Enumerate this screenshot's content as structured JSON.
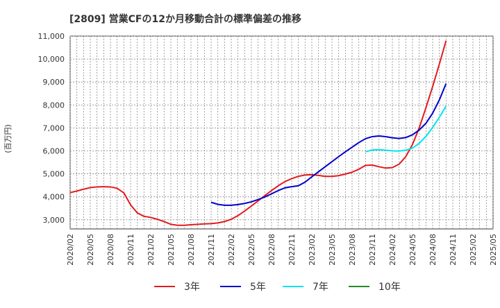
{
  "chart_data": {
    "type": "line",
    "title": "[2809]  営業CFの12か月移動合計の標準偏差の推移",
    "ylabel": "(百万円)",
    "xlabel": "",
    "ylim": [
      2600,
      11000
    ],
    "yticks": [
      3000,
      4000,
      5000,
      6000,
      7000,
      8000,
      9000,
      10000,
      11000
    ],
    "ytick_labels": [
      "3,000",
      "4,000",
      "5,000",
      "6,000",
      "7,000",
      "8,000",
      "9,000",
      "10,000",
      "11,000"
    ],
    "x_months": [
      "2020/02",
      "2020/03",
      "2020/04",
      "2020/05",
      "2020/06",
      "2020/07",
      "2020/08",
      "2020/09",
      "2020/10",
      "2020/11",
      "2020/12",
      "2021/01",
      "2021/02",
      "2021/03",
      "2021/04",
      "2021/05",
      "2021/06",
      "2021/07",
      "2021/08",
      "2021/09",
      "2021/10",
      "2021/11",
      "2021/12",
      "2022/01",
      "2022/02",
      "2022/03",
      "2022/04",
      "2022/05",
      "2022/06",
      "2022/07",
      "2022/08",
      "2022/09",
      "2022/10",
      "2022/11",
      "2022/12",
      "2023/01",
      "2023/02",
      "2023/03",
      "2023/04",
      "2023/05",
      "2023/06",
      "2023/07",
      "2023/08",
      "2023/09",
      "2023/10",
      "2023/11",
      "2023/12",
      "2024/01",
      "2024/02",
      "2024/03",
      "2024/04",
      "2024/05",
      "2024/06",
      "2024/07",
      "2024/08",
      "2024/09",
      "2024/10",
      "2024/11",
      "2024/12",
      "2025/01",
      "2025/02",
      "2025/03",
      "2025/04",
      "2025/05"
    ],
    "x_tick_labels": [
      "2020/02",
      "2020/05",
      "2020/08",
      "2020/11",
      "2021/02",
      "2021/05",
      "2021/08",
      "2021/11",
      "2022/02",
      "2022/05",
      "2022/08",
      "2022/11",
      "2023/02",
      "2023/05",
      "2023/08",
      "2023/11",
      "2024/02",
      "2024/05",
      "2024/08",
      "2024/11",
      "2025/02",
      "2025/05"
    ],
    "grid": true,
    "legend_position": "bottom",
    "series": [
      {
        "name": "3年",
        "color": "#e31a1c",
        "values": [
          4180,
          4250,
          4330,
          4400,
          4430,
          4440,
          4430,
          4370,
          4170,
          3650,
          3300,
          3150,
          3100,
          3020,
          2920,
          2800,
          2760,
          2760,
          2780,
          2800,
          2820,
          2830,
          2860,
          2920,
          3020,
          3180,
          3380,
          3600,
          3820,
          4050,
          4270,
          4480,
          4660,
          4790,
          4890,
          4950,
          4960,
          4930,
          4890,
          4890,
          4920,
          4990,
          5070,
          5200,
          5370,
          5380,
          5310,
          5250,
          5270,
          5420,
          5750,
          6280,
          7000,
          7880,
          8800,
          9780,
          10800,
          null,
          null,
          null,
          null,
          null,
          null,
          null
        ]
      },
      {
        "name": "5年",
        "color": "#0000cc",
        "values": [
          null,
          null,
          null,
          null,
          null,
          null,
          null,
          null,
          null,
          null,
          null,
          null,
          null,
          null,
          null,
          null,
          null,
          null,
          null,
          null,
          null,
          3760,
          3670,
          3630,
          3630,
          3660,
          3710,
          3780,
          3880,
          3990,
          4130,
          4270,
          4390,
          4440,
          4480,
          4640,
          4870,
          5090,
          5310,
          5530,
          5750,
          5960,
          6160,
          6360,
          6530,
          6620,
          6650,
          6620,
          6570,
          6540,
          6580,
          6700,
          6910,
          7200,
          7640,
          8220,
          8930,
          null,
          null,
          null,
          null,
          null,
          null,
          null
        ]
      },
      {
        "name": "7年",
        "color": "#00e5ee",
        "values": [
          null,
          null,
          null,
          null,
          null,
          null,
          null,
          null,
          null,
          null,
          null,
          null,
          null,
          null,
          null,
          null,
          null,
          null,
          null,
          null,
          null,
          null,
          null,
          null,
          null,
          null,
          null,
          null,
          null,
          null,
          null,
          null,
          null,
          null,
          null,
          null,
          null,
          null,
          null,
          null,
          null,
          null,
          null,
          null,
          5960,
          6040,
          6050,
          6030,
          6000,
          5990,
          6030,
          6120,
          6330,
          6630,
          7020,
          7460,
          7950,
          null,
          null,
          null,
          null,
          null,
          null,
          null
        ]
      },
      {
        "name": "10年",
        "color": "#228b22",
        "values": []
      }
    ]
  }
}
